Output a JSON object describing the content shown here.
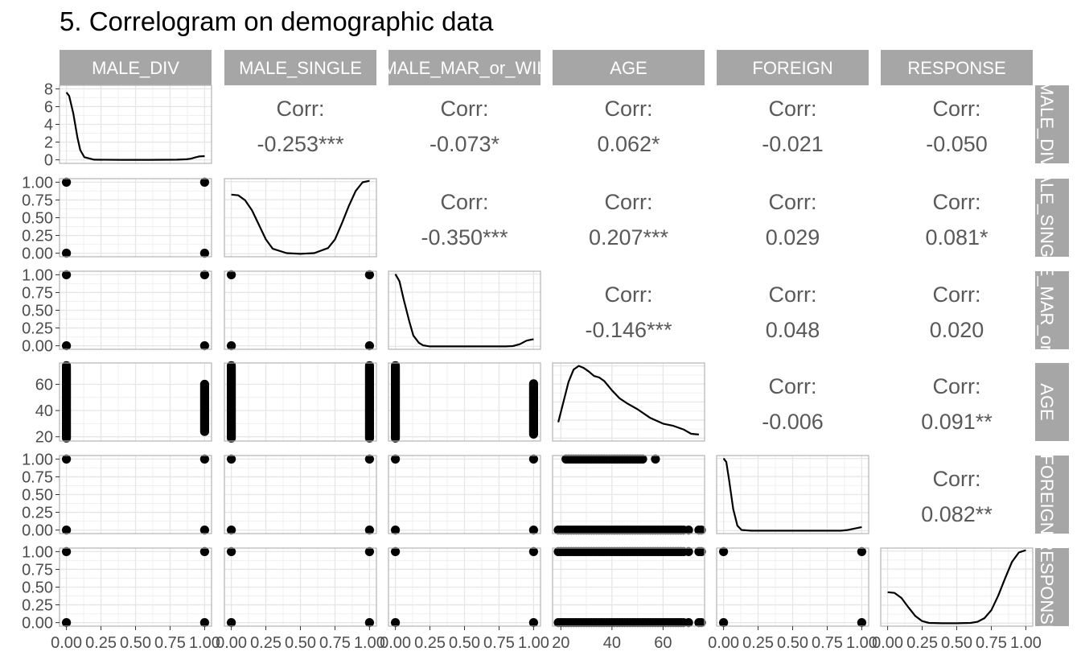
{
  "chart_data": {
    "type": "scatter",
    "title": "5. Correlogram on demographic data",
    "variables": [
      "MALE_DIV",
      "MALE_SINGLE",
      "MALE_MAR_or_WIL",
      "AGE",
      "FOREIGN",
      "RESPONSE"
    ],
    "strip_labels": {
      "top": [
        "MALE_DIV",
        "MALE_SINGLE",
        "MALE_MAR_or_WIL",
        "AGE",
        "FOREIGN",
        "RESPONSE"
      ],
      "right": [
        "MALE_DIV",
        "MALE_SINGLE",
        "MALE_MAR_or_WIL",
        "AGE",
        "FOREIGN",
        "RESPONSE"
      ]
    },
    "corr_label": "Corr:",
    "correlations": [
      {
        "row": 0,
        "col": 1,
        "value": "-0.253***"
      },
      {
        "row": 0,
        "col": 2,
        "value": "-0.073*"
      },
      {
        "row": 0,
        "col": 3,
        "value": "0.062*"
      },
      {
        "row": 0,
        "col": 4,
        "value": "-0.021"
      },
      {
        "row": 0,
        "col": 5,
        "value": "-0.050"
      },
      {
        "row": 1,
        "col": 2,
        "value": "-0.350***"
      },
      {
        "row": 1,
        "col": 3,
        "value": "0.207***"
      },
      {
        "row": 1,
        "col": 4,
        "value": "0.029"
      },
      {
        "row": 1,
        "col": 5,
        "value": "0.081*"
      },
      {
        "row": 2,
        "col": 3,
        "value": "-0.146***"
      },
      {
        "row": 2,
        "col": 4,
        "value": "0.048"
      },
      {
        "row": 2,
        "col": 5,
        "value": "0.020"
      },
      {
        "row": 3,
        "col": 4,
        "value": "-0.006"
      },
      {
        "row": 3,
        "col": 5,
        "value": "0.091**"
      },
      {
        "row": 4,
        "col": 5,
        "value": "0.082**"
      }
    ],
    "binary_ticks": [
      "0.00",
      "0.25",
      "0.50",
      "0.75",
      "1.00"
    ],
    "age_ticks": [
      "20",
      "40",
      "60"
    ],
    "density_ticks": [
      "0",
      "2",
      "4",
      "6",
      "8"
    ],
    "binary_range": [
      -0.05,
      1.05
    ],
    "age_range": [
      16.75,
      76.25
    ],
    "density_range": [
      -0.4,
      8.4
    ],
    "densities": [
      {
        "var": "MALE_DIV",
        "x": [
          0,
          0.02,
          0.05,
          0.08,
          0.1,
          0.13,
          0.2,
          0.4,
          0.6,
          0.8,
          0.87,
          0.9,
          0.93,
          0.96,
          1.0
        ],
        "y": [
          7.6,
          7.2,
          5.2,
          2.5,
          1.1,
          0.3,
          0.02,
          0,
          0,
          0.02,
          0.06,
          0.13,
          0.26,
          0.38,
          0.42
        ]
      },
      {
        "var": "MALE_SINGLE",
        "x": [
          0,
          0.05,
          0.1,
          0.15,
          0.2,
          0.25,
          0.3,
          0.4,
          0.5,
          0.6,
          0.7,
          0.75,
          0.8,
          0.85,
          0.9,
          0.95,
          1.0
        ],
        "y": [
          0.82,
          0.81,
          0.74,
          0.6,
          0.4,
          0.2,
          0.07,
          0.01,
          0,
          0.01,
          0.08,
          0.2,
          0.42,
          0.66,
          0.87,
          0.99,
          1.01
        ]
      },
      {
        "var": "MALE_MAR_or_WIL",
        "x": [
          0,
          0.03,
          0.06,
          0.1,
          0.13,
          0.17,
          0.2,
          0.25,
          0.4,
          0.6,
          0.8,
          0.85,
          0.9,
          0.95,
          1.0
        ],
        "y": [
          1.0,
          0.9,
          0.65,
          0.35,
          0.15,
          0.05,
          0.015,
          0,
          0,
          0,
          0,
          0.005,
          0.03,
          0.08,
          0.1
        ]
      },
      {
        "var": "AGE",
        "x": [
          19,
          21,
          23,
          25,
          27,
          29,
          31,
          33,
          35,
          37,
          40,
          43,
          46,
          50,
          55,
          60,
          64,
          68,
          71,
          74
        ],
        "y": [
          0.22,
          0.5,
          0.78,
          0.95,
          1.0,
          0.97,
          0.92,
          0.86,
          0.84,
          0.79,
          0.66,
          0.55,
          0.48,
          0.4,
          0.28,
          0.2,
          0.17,
          0.12,
          0.06,
          0.05
        ]
      },
      {
        "var": "FOREIGN",
        "x": [
          0,
          0.02,
          0.04,
          0.07,
          0.1,
          0.13,
          0.2,
          0.5,
          0.85,
          0.9,
          0.95,
          1.0
        ],
        "y": [
          1.0,
          0.95,
          0.7,
          0.3,
          0.07,
          0.01,
          0,
          0,
          0,
          0.01,
          0.03,
          0.05
        ]
      },
      {
        "var": "RESPONSE",
        "x": [
          0,
          0.05,
          0.1,
          0.15,
          0.2,
          0.25,
          0.3,
          0.4,
          0.5,
          0.6,
          0.65,
          0.7,
          0.75,
          0.8,
          0.85,
          0.9,
          0.95,
          1.0
        ],
        "y": [
          0.43,
          0.42,
          0.35,
          0.22,
          0.1,
          0.03,
          0.005,
          0,
          0,
          0.005,
          0.02,
          0.07,
          0.18,
          0.38,
          0.62,
          0.85,
          0.98,
          1.01
        ]
      }
    ],
    "age_points": [
      19,
      20,
      21,
      22,
      23,
      24,
      25,
      26,
      27,
      28,
      29,
      30,
      31,
      32,
      33,
      34,
      35,
      36,
      37,
      38,
      39,
      40,
      41,
      42,
      43,
      44,
      45,
      46,
      47,
      48,
      49,
      50,
      51,
      52,
      53,
      54,
      55,
      56,
      57,
      58,
      59,
      60,
      61,
      62,
      63,
      64,
      65,
      66,
      67,
      68,
      70,
      74,
      75
    ],
    "age_points_foreign1": [
      22,
      23,
      24,
      25,
      26,
      27,
      28,
      29,
      30,
      31,
      32,
      33,
      34,
      35,
      36,
      37,
      38,
      39,
      40,
      41,
      42,
      43,
      44,
      45,
      46,
      47,
      48,
      49,
      50,
      51,
      52,
      57
    ],
    "age_range_divorced": [
      24,
      61
    ],
    "colors": {
      "strip": "#a6a6a6",
      "grid": "#e6e6e6",
      "border": "#b3b3b3",
      "points": "#000000",
      "line": "#000000",
      "corr": "#595959"
    },
    "grid": true
  }
}
